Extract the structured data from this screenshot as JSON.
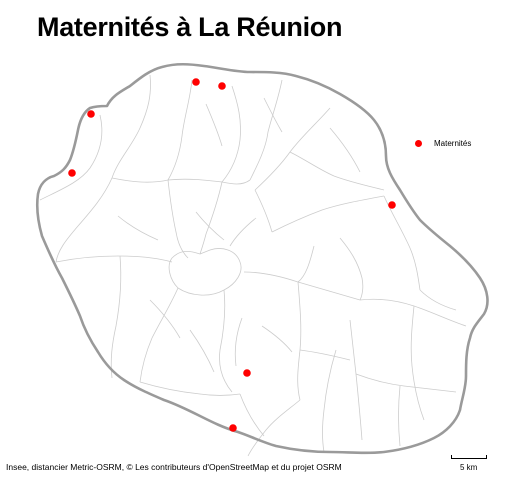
{
  "title": "Maternités à La Réunion",
  "legend": {
    "label": "Maternités",
    "color": "#ff0000"
  },
  "source": "Insee, distancier Metric-OSRM, © Les contributeurs d'OpenStreetMap et du projet OSRM",
  "scale": {
    "label": "5 km"
  },
  "colors": {
    "island_outline": "#9a9a9a",
    "commune_borders": "#c8c8c8",
    "marker": "#ff0000"
  },
  "map": {
    "markers": 7,
    "marker_symbol": "red-dot"
  }
}
